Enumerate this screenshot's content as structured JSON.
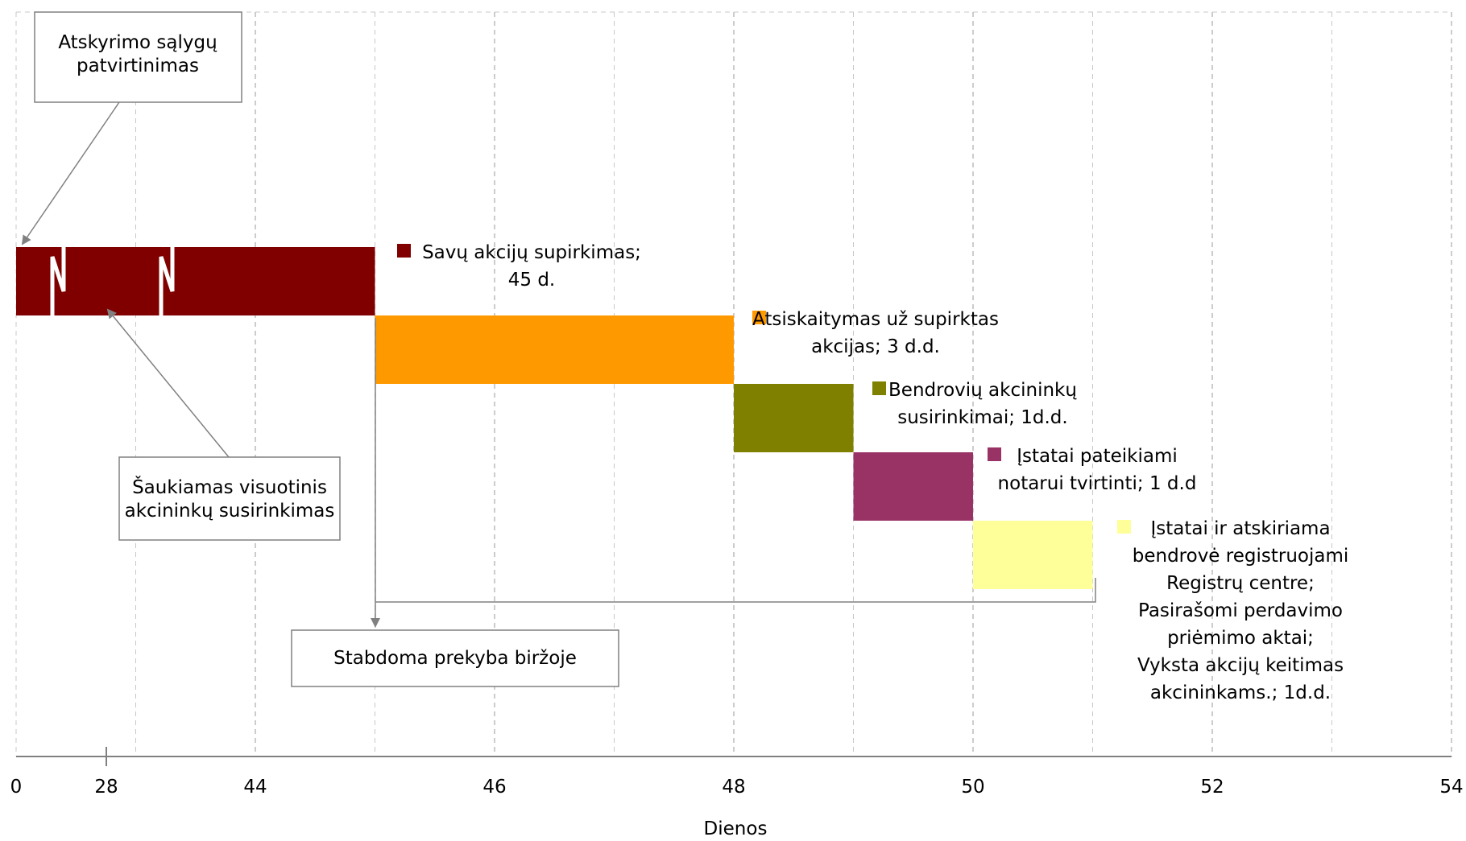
{
  "chart_data": {
    "type": "gantt",
    "xlabel": "Dienos",
    "x_ticks": [
      "0",
      "28",
      "44",
      "46",
      "48",
      "50",
      "52",
      "54"
    ],
    "grid": "vertical dashed",
    "tasks": [
      {
        "name": "Savų akcijų supirkimas; 45 d.",
        "label_lines": [
          "Savų akcijų supirkimas;",
          "45 d."
        ],
        "start": 0,
        "end": 45,
        "color": "#800000",
        "axis_break": true
      },
      {
        "name": "Atsiskaitymas už supirktas akcijas; 3 d.d.",
        "label_lines": [
          "Atsiskaitymas už supirktas",
          "akcijas; 3 d.d."
        ],
        "start": 45,
        "end": 48,
        "color": "#FF9900"
      },
      {
        "name": "Bendrovių akcininkų susirinkimai; 1d.d.",
        "label_lines": [
          "Bendrovių akcininkų",
          "susirinkimai; 1d.d."
        ],
        "start": 48,
        "end": 49,
        "color": "#808000"
      },
      {
        "name": "Įstatai pateikiami notarui tvirtinti; 1 d.d",
        "label_lines": [
          "Įstatai pateikiami",
          "notarui tvirtinti; 1 d.d"
        ],
        "start": 49,
        "end": 50,
        "color": "#993366"
      },
      {
        "name": "Įstatai ir atskiriama bendrovė registruojami Registrų centre; Pasirašomi perdavimo priėmimo aktai; Vyksta akcijų keitimas akcininkams.; 1d.d.",
        "label_lines": [
          "Įstatai ir atskiriama",
          "bendrovė registruojami",
          "Registrų centre;",
          "Pasirašomi perdavimo",
          "priėmimo aktai;",
          "Vyksta akcijų keitimas",
          "akcininkams.; 1d.d."
        ],
        "start": 50,
        "end": 51,
        "color": "#FFFF99"
      }
    ],
    "annotations": [
      {
        "id": "separation",
        "lines": [
          "Atskyrimo sąlygų",
          "patvirtinimas"
        ]
      },
      {
        "id": "meeting",
        "lines": [
          "Šaukiamas visuotinis",
          "akcininkų susirinkimas"
        ]
      },
      {
        "id": "halt",
        "lines": [
          "Stabdoma prekyba biržoje"
        ]
      }
    ]
  }
}
